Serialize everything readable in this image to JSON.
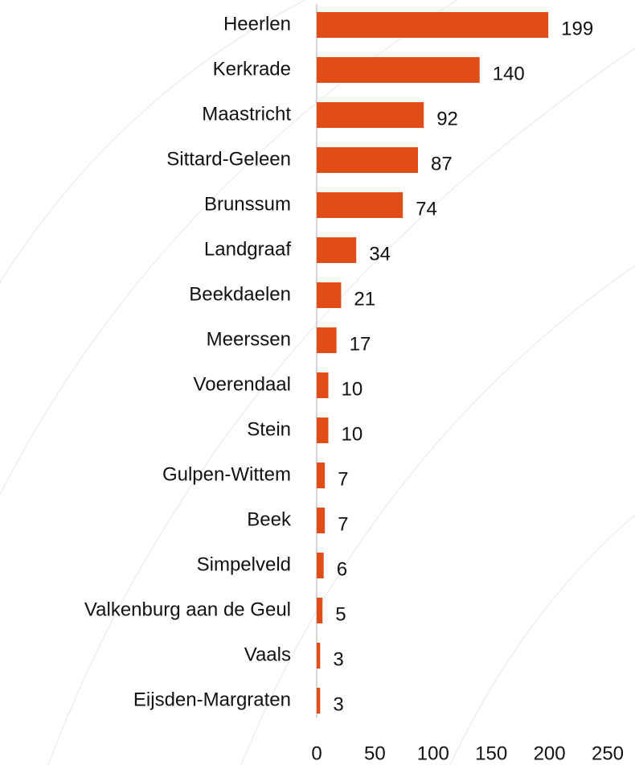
{
  "chart_data": {
    "type": "bar",
    "orientation": "horizontal",
    "categories": [
      "Heerlen",
      "Kerkrade",
      "Maastricht",
      "Sittard-Geleen",
      "Brunssum",
      "Landgraaf",
      "Beekdaelen",
      "Meerssen",
      "Voerendaal",
      "Stein",
      "Gulpen-Wittem",
      "Beek ",
      "Simpelveld",
      "Valkenburg aan de Geul",
      "Vaals",
      "Eijsden-Margraten"
    ],
    "values": [
      199,
      140,
      92,
      87,
      74,
      34,
      21,
      17,
      10,
      10,
      7,
      7,
      6,
      5,
      3,
      3
    ],
    "color": "#e04d17",
    "xlim": [
      0,
      250
    ],
    "xticks": [
      0,
      50,
      100,
      150,
      200,
      250
    ],
    "grid": false
  }
}
